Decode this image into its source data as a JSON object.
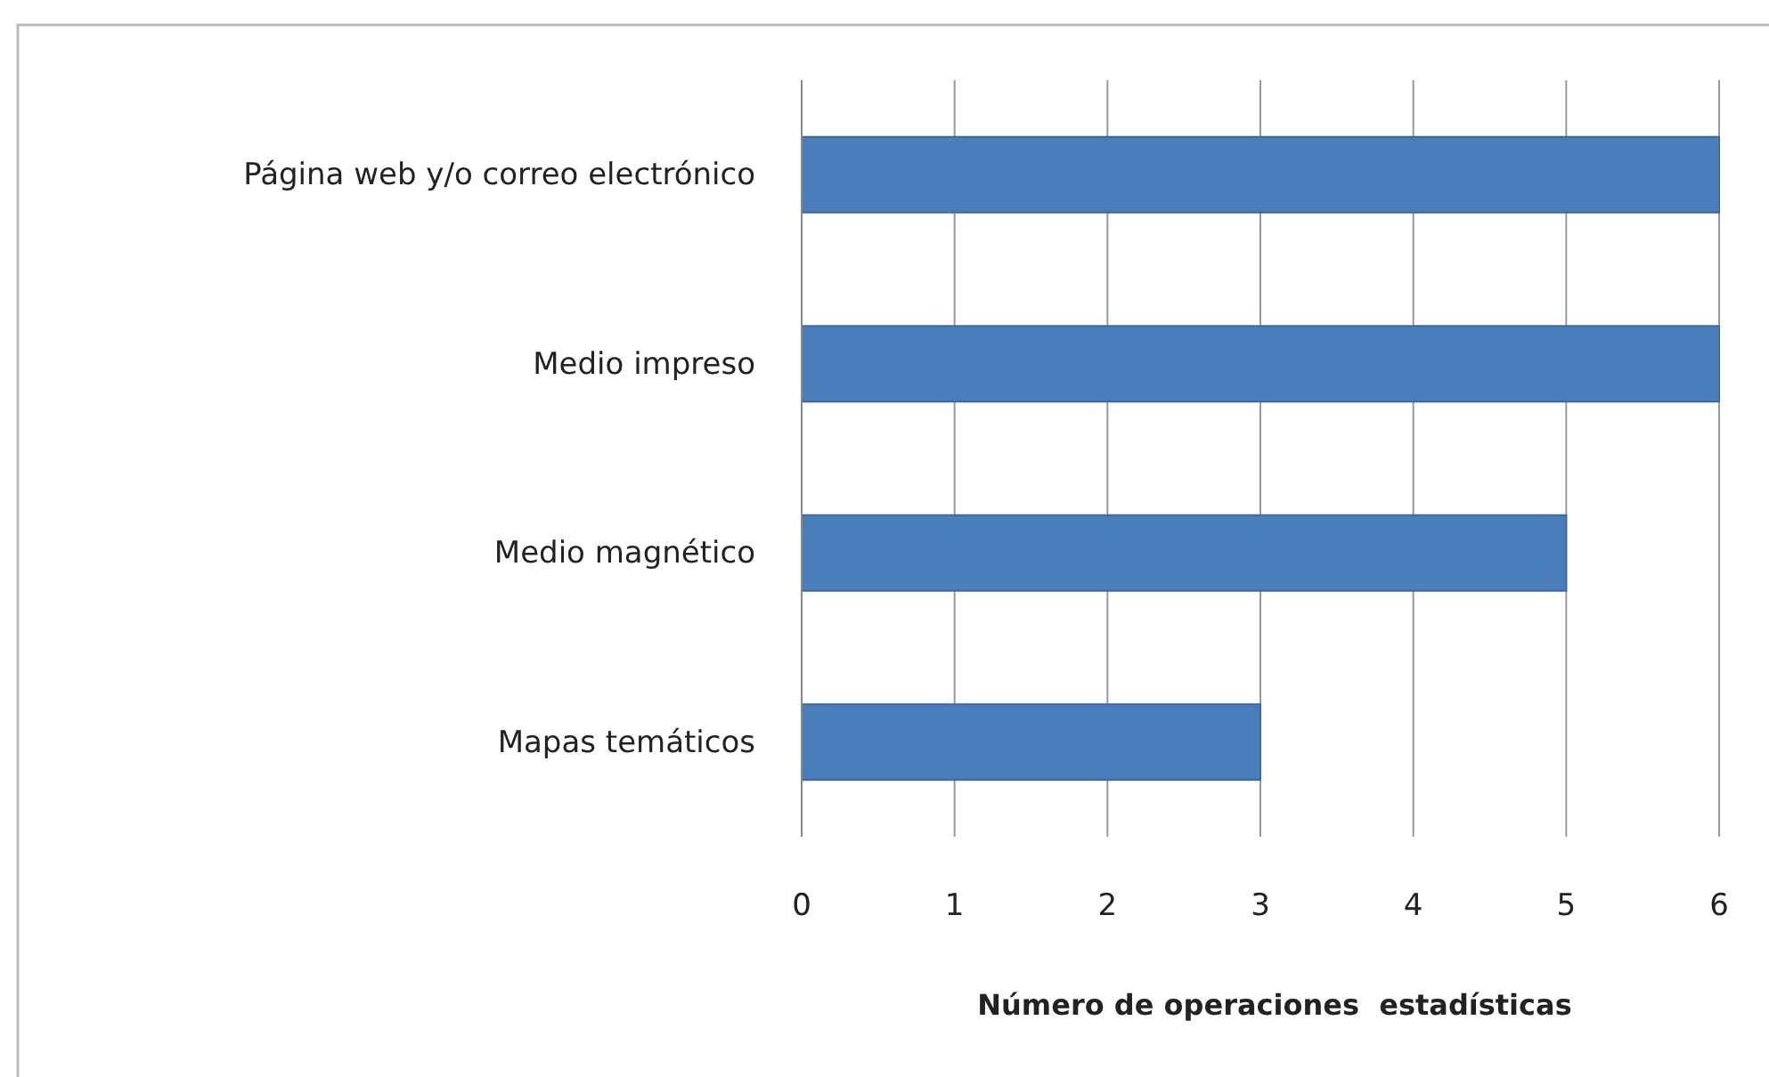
{
  "chart_data": {
    "type": "bar",
    "orientation": "horizontal",
    "categories": [
      "Página web y/o correo electrónico",
      "Medio impreso",
      "Medio magnético",
      "Mapas temáticos"
    ],
    "values": [
      6,
      6,
      5,
      3
    ],
    "color": "#4a7ebb",
    "xlim": [
      0,
      6
    ],
    "xticks": [
      0,
      1,
      2,
      3,
      4,
      5,
      6
    ],
    "xlabel": "Número de operaciones  estadísticas",
    "grid": "x"
  }
}
